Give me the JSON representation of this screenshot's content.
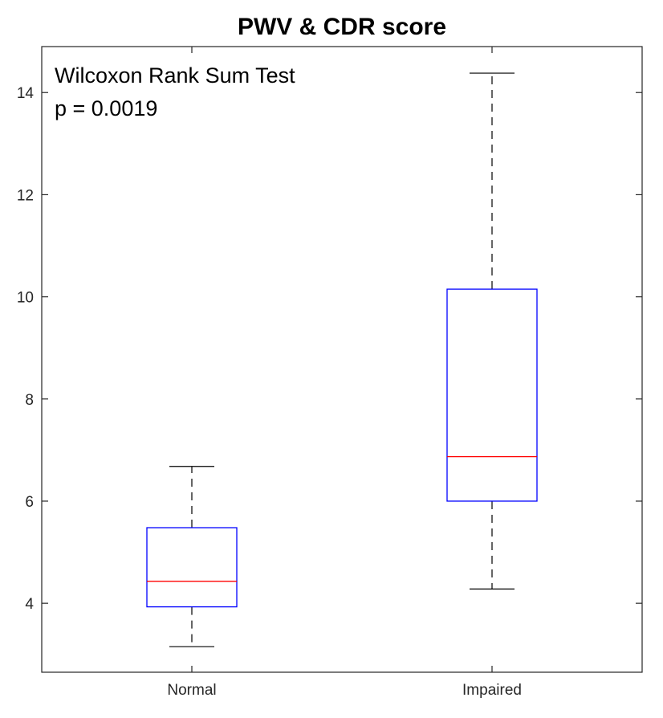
{
  "chart_data": {
    "type": "box",
    "title": "PWV & CDR score",
    "xlabel": "",
    "ylabel": "",
    "categories": [
      "Normal",
      "Impaired"
    ],
    "ylim": [
      2.65,
      14.9
    ],
    "yticks": [
      4,
      6,
      8,
      10,
      12,
      14
    ],
    "grid": false,
    "boxes": [
      {
        "label": "Normal",
        "whisker_low": 3.15,
        "q1": 3.93,
        "median": 4.43,
        "q3": 5.48,
        "whisker_high": 6.68
      },
      {
        "label": "Impaired",
        "whisker_low": 4.28,
        "q1": 6.0,
        "median": 6.87,
        "q3": 10.15,
        "whisker_high": 14.38
      }
    ],
    "annotations": [
      "Wilcoxon Rank Sum Test",
      "p = 0.0019"
    ],
    "colors": {
      "box": "#0000ff",
      "median": "#ff0000",
      "whisker": "#000000"
    }
  }
}
